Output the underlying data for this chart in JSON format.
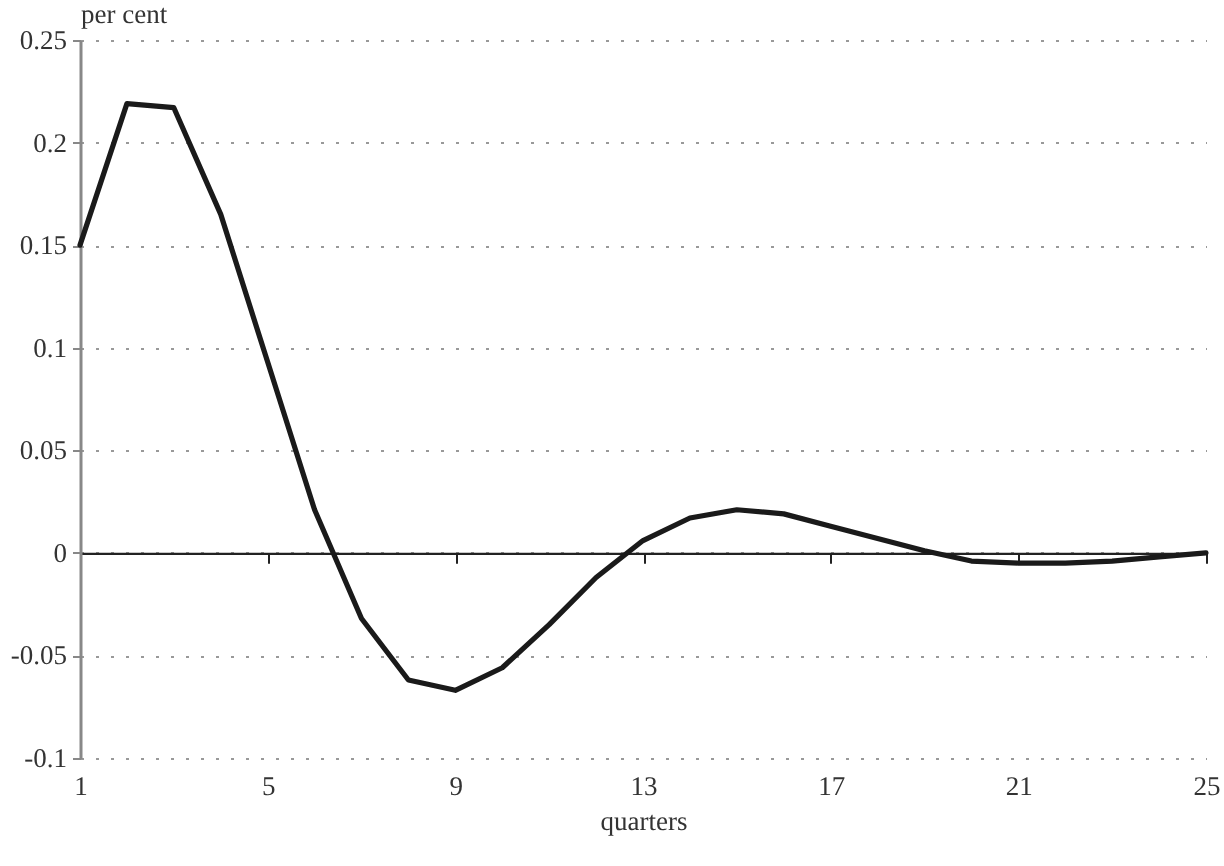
{
  "chart_data": {
    "type": "line",
    "ylabel": "per cent",
    "xlabel": "quarters",
    "x": [
      1,
      2,
      3,
      4,
      5,
      6,
      7,
      8,
      9,
      10,
      11,
      12,
      13,
      14,
      15,
      16,
      17,
      18,
      19,
      20,
      21,
      22,
      23,
      24,
      25
    ],
    "series": [
      {
        "color": "#1a1a1a",
        "values": [
          0.15,
          0.219,
          0.217,
          0.165,
          0.093,
          0.021,
          -0.032,
          -0.062,
          -0.067,
          -0.056,
          -0.035,
          -0.012,
          0.006,
          0.017,
          0.021,
          0.019,
          0.013,
          0.007,
          0.001,
          -0.004,
          -0.005,
          -0.005,
          -0.004,
          -0.002,
          0.0
        ]
      }
    ],
    "xlim": [
      1,
      25
    ],
    "xticks": [
      1,
      5,
      9,
      13,
      17,
      21,
      25
    ],
    "ylim": [
      -0.1,
      0.25
    ],
    "yticks": [
      -0.1,
      -0.05,
      0,
      0.05,
      0.1,
      0.15,
      0.2,
      0.25
    ],
    "grid": "y",
    "line_style": "solid"
  }
}
